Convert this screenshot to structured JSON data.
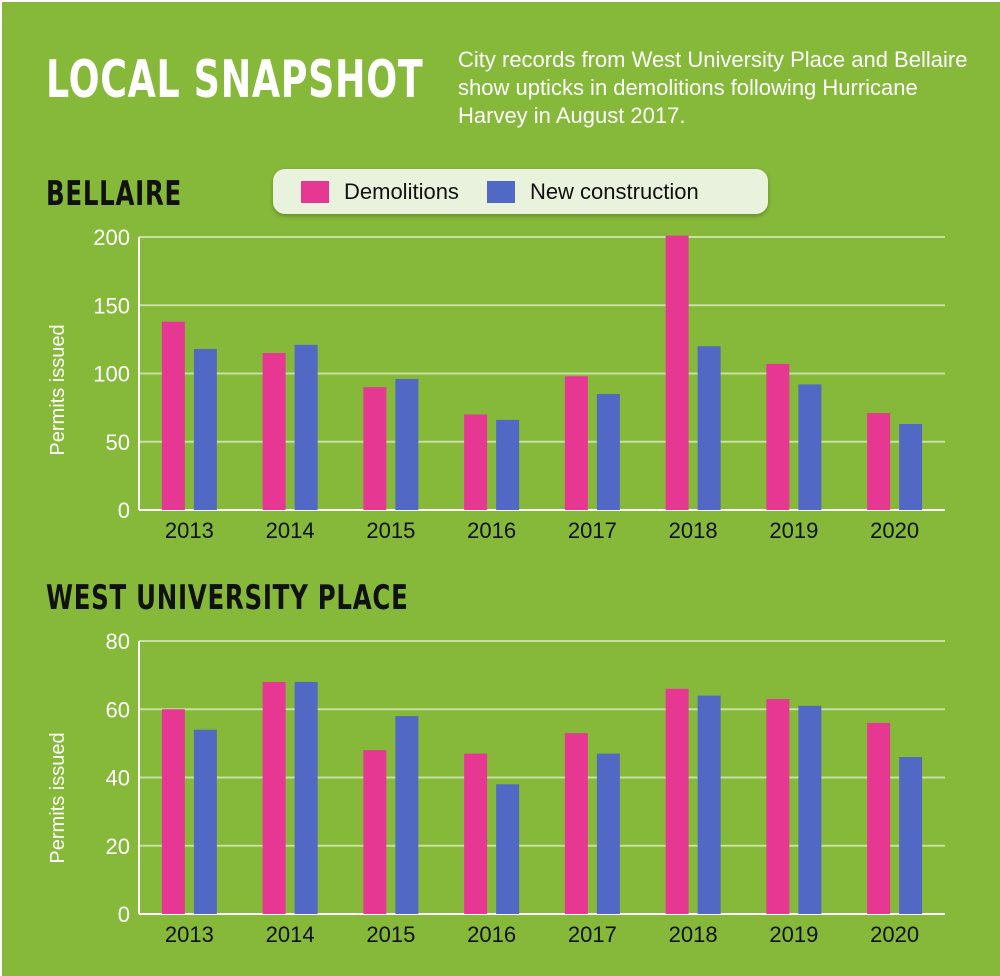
{
  "headline": "LOCAL SNAPSHOT",
  "intro": "City records from West University Place and Bellaire show upticks in demolitions following Hurricane Harvey in August 2017.",
  "legend": {
    "demolitions": "Demolitions",
    "new_construction": "New construction"
  },
  "colors": {
    "background": "#86b93a",
    "demolitions": "#e63893",
    "new_construction": "#5168c4",
    "grid": "#c8e0a0"
  },
  "chart_data": [
    {
      "type": "bar",
      "title": "BELLAIRE",
      "ylabel": "Permits issued",
      "xlabel": "",
      "categories": [
        "2013",
        "2014",
        "2015",
        "2016",
        "2017",
        "2018",
        "2019",
        "2020"
      ],
      "ylim": [
        0,
        200
      ],
      "yticks": [
        0,
        50,
        100,
        150,
        200
      ],
      "grid": true,
      "legend": "top",
      "series": [
        {
          "name": "Demolitions",
          "values": [
            138,
            115,
            90,
            70,
            98,
            201,
            107,
            71
          ]
        },
        {
          "name": "New construction",
          "values": [
            118,
            121,
            96,
            66,
            85,
            120,
            92,
            63
          ]
        }
      ]
    },
    {
      "type": "bar",
      "title": "WEST UNIVERSITY PLACE",
      "ylabel": "Permits issued",
      "xlabel": "",
      "categories": [
        "2013",
        "2014",
        "2015",
        "2016",
        "2017",
        "2018",
        "2019",
        "2020"
      ],
      "ylim": [
        0,
        80
      ],
      "yticks": [
        0,
        20,
        40,
        60,
        80
      ],
      "grid": true,
      "series": [
        {
          "name": "Demolitions",
          "values": [
            60,
            68,
            48,
            47,
            53,
            66,
            63,
            56
          ]
        },
        {
          "name": "New construction",
          "values": [
            54,
            68,
            58,
            38,
            47,
            64,
            61,
            46
          ]
        }
      ]
    }
  ]
}
